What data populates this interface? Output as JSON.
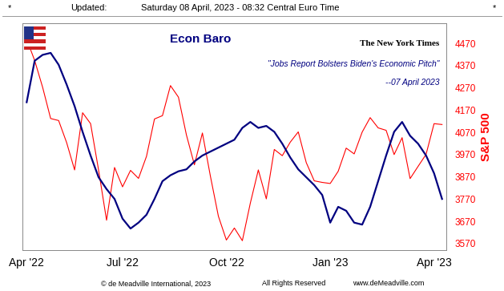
{
  "chart_data": {
    "type": "line",
    "title": "Econ Baro",
    "header": [
      "*",
      "Updated:",
      "Saturday 08 April, 2023 - 08:32 Central Euro Time",
      "*"
    ],
    "footer": [
      "© de Meadville International, 2023",
      "All Rights Reserved",
      "www.deMeadville.com"
    ],
    "annotations": [
      "The New York Times",
      "\"Jobs Report Bolsters Biden's Economic Pitch\"",
      "--07 April 2023"
    ],
    "y2_label": "S&P 500",
    "categories": [
      "Apr '22",
      null,
      null,
      null,
      null,
      null,
      null,
      null,
      null,
      null,
      null,
      null,
      "Jul '22",
      null,
      null,
      null,
      null,
      null,
      null,
      null,
      null,
      null,
      null,
      null,
      null,
      "Oct '22",
      null,
      null,
      null,
      null,
      null,
      null,
      null,
      null,
      null,
      null,
      null,
      null,
      "Jan '23",
      null,
      null,
      null,
      null,
      null,
      null,
      null,
      null,
      null,
      null,
      null,
      null,
      "Apr '23",
      null
    ],
    "ylim": [
      -5,
      110
    ],
    "yticks": [],
    "y2lim": [
      3540,
      4560
    ],
    "y2ticks": [
      3570,
      3670,
      3770,
      3870,
      3970,
      4070,
      4170,
      4270,
      4370,
      4470
    ],
    "grid": false,
    "series": [
      {
        "name": "Econ Baro",
        "color": "#000080",
        "line_style": "solid",
        "values": [
          70,
          91,
          94,
          95,
          89,
          79,
          68,
          55,
          43,
          32,
          26,
          21,
          11,
          6,
          9,
          13,
          21,
          30,
          33,
          35,
          36,
          40,
          43,
          45,
          47,
          49,
          51,
          57,
          60,
          57,
          58,
          55,
          49,
          42,
          36,
          32,
          28,
          23,
          9,
          17,
          15,
          9,
          8,
          17,
          30,
          43,
          55,
          60,
          53,
          49,
          43,
          34,
          21
        ]
      },
      {
        "name": "S&P 500",
        "color": "#ff0000",
        "axis": "y2",
        "line_style": "solid",
        "values": [
          4488,
          4393,
          4272,
          4132,
          4123,
          4024,
          3901,
          4158,
          4109,
          3901,
          3675,
          3912,
          3825,
          3899,
          3863,
          3962,
          4130,
          4145,
          4280,
          4228,
          4058,
          3924,
          4067,
          3873,
          3693,
          3586,
          3640,
          3583,
          3752,
          3901,
          3771,
          3993,
          3965,
          4026,
          4072,
          3934,
          3852,
          3845,
          3840,
          3895,
          3999,
          3973,
          4071,
          4136,
          4090,
          4079,
          3970,
          4046,
          3862,
          3917,
          3971,
          4109,
          4105
        ]
      }
    ]
  }
}
